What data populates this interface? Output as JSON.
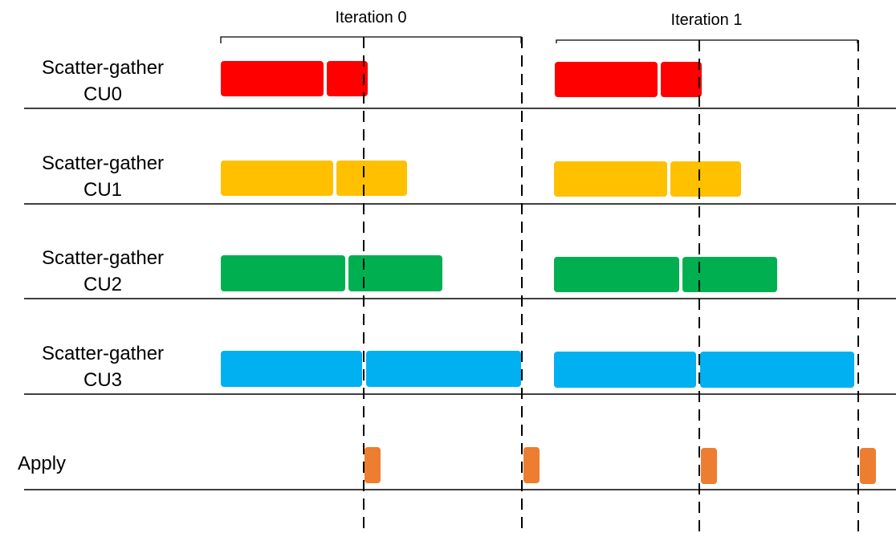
{
  "iterations": [
    {
      "label": "Iteration 0"
    },
    {
      "label": "Iteration 1"
    }
  ],
  "rows": [
    {
      "line1": "Scatter-gather",
      "line2": "CU0",
      "color": "#FF0000"
    },
    {
      "line1": "Scatter-gather",
      "line2": "CU1",
      "color": "#FFC000"
    },
    {
      "line1": "Scatter-gather",
      "line2": "CU2",
      "color": "#00B050"
    },
    {
      "line1": "Scatter-gather",
      "line2": "CU3",
      "color": "#00B0F0"
    }
  ],
  "apply": {
    "label": "Apply",
    "color": "#ED7D31"
  }
}
